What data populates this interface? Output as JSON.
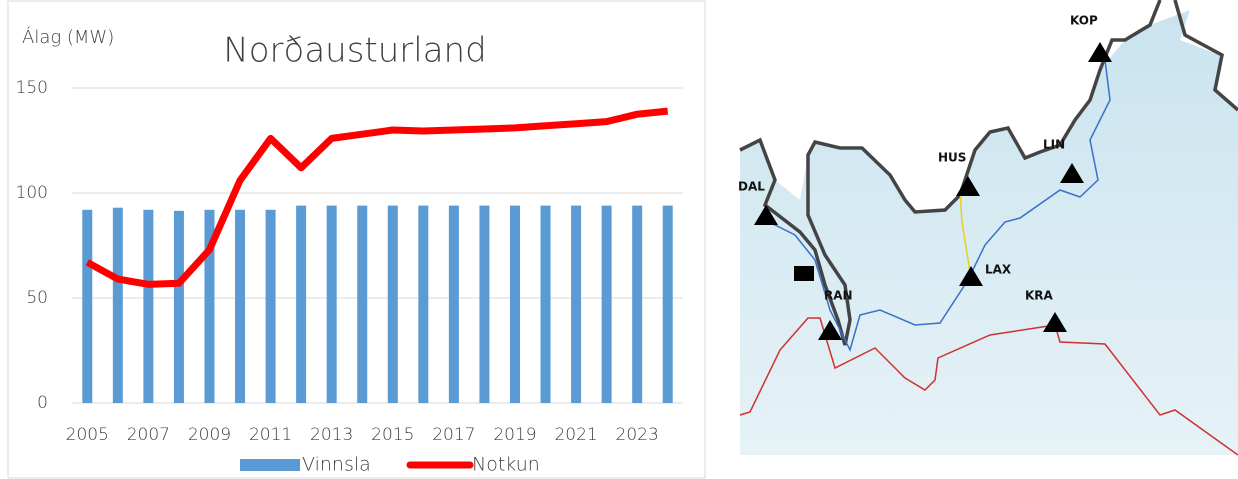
{
  "chart_data": {
    "type": "bar-line",
    "title": "Norðausturland",
    "y_axis_label": "Álag (MW)",
    "categories": [
      "2005",
      null,
      "2007",
      null,
      "2009",
      null,
      "2011",
      null,
      "2013",
      null,
      "2015",
      null,
      "2017",
      null,
      "2019",
      null,
      "2021",
      null,
      "2023",
      null
    ],
    "series": [
      {
        "name": "Vinnsla",
        "type": "bar",
        "color": "#5b9bd5",
        "values": [
          92,
          93,
          92,
          91.5,
          92,
          92,
          92,
          94,
          94,
          94,
          94,
          94,
          94,
          94,
          94,
          94,
          94,
          94,
          94,
          94
        ]
      },
      {
        "name": "Notkun",
        "type": "line",
        "color": "#ff0000",
        "values": [
          67,
          59,
          56.5,
          57,
          73,
          106,
          126,
          112,
          126,
          128,
          130,
          129.5,
          130,
          130.5,
          131,
          132,
          133,
          134,
          137.5,
          139
        ]
      }
    ],
    "ylim": [
      0,
      150
    ],
    "yticks": [
      0,
      50,
      100,
      150
    ],
    "grid": true,
    "legend": "bottom"
  },
  "map": {
    "labels": [
      "KOP",
      "HUS",
      "LIN",
      "DAL",
      "LAX",
      "RAN",
      "KRA"
    ]
  }
}
